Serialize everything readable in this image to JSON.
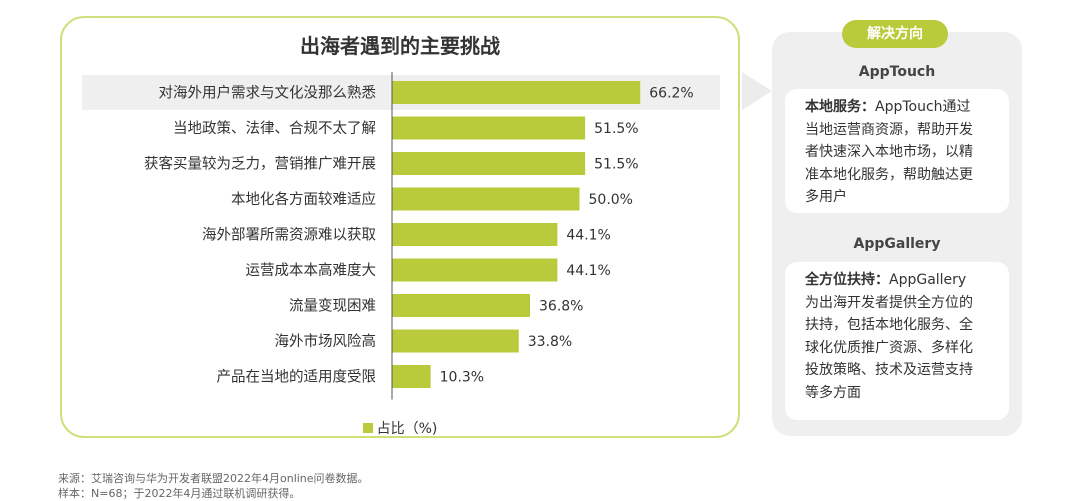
{
  "chart_data": {
    "type": "bar",
    "orientation": "horizontal",
    "title": "出海者遇到的主要挑战",
    "categories": [
      "对海外用户需求与文化没那么熟悉",
      "当地政策、法律、合规不太了解",
      "获客买量较为乏力，营销推广难开展",
      "本地化各方面较难适应",
      "海外部署所需资源难以获取",
      "运营成本本高难度大",
      "流量变现困难",
      "海外市场风险高",
      "产品在当地的适用度受限"
    ],
    "series": [
      {
        "name": "占比（%)",
        "values": [
          66.2,
          51.5,
          51.5,
          50.0,
          44.1,
          44.1,
          36.8,
          33.8,
          10.3
        ]
      }
    ],
    "value_labels": [
      "66.2%",
      "51.5%",
      "51.5%",
      "50.0%",
      "44.1%",
      "44.1%",
      "36.8%",
      "33.8%",
      "10.3%"
    ],
    "xlim": [
      0,
      100
    ],
    "highlight_index": 0,
    "legend": "bottom",
    "grid": false
  },
  "legend_label": "占比（%)",
  "colors": {
    "bar": "#b9cb3a",
    "highlight_row": "#efefef",
    "panel_border": "#cfe07a",
    "accent": "#b9cb3a",
    "side_bg": "#efefef"
  },
  "side": {
    "header": "解决方向",
    "section1": {
      "title": "AppTouch",
      "lines": [
        {
          "bold": "本地服务：",
          "text": "AppTouch通过"
        },
        {
          "bold": "",
          "text": "当地运营商资源，帮助开发"
        },
        {
          "bold": "",
          "text": "者快速深入本地市场，以精"
        },
        {
          "bold": "",
          "text": "准本地化服务，帮助触达更"
        },
        {
          "bold": "",
          "text": "多用户"
        }
      ]
    },
    "section2": {
      "title": "AppGallery",
      "lines": [
        {
          "bold": "全方位扶持：",
          "text": "AppGallery"
        },
        {
          "bold": "",
          "text": "为出海开发者提供全方位的"
        },
        {
          "bold": "",
          "text": "扶持，包括本地化服务、全"
        },
        {
          "bold": "",
          "text": "球化优质推广资源、多样化"
        },
        {
          "bold": "",
          "text": "投放策略、技术及运营支持"
        },
        {
          "bold": "",
          "text": "等多方面"
        }
      ]
    }
  },
  "footnotes": {
    "source": "来源：艾瑞咨询与华为开发者联盟2022年4月online问卷数据。",
    "sample": "样本：N=68；于2022年4月通过联机调研获得。"
  }
}
